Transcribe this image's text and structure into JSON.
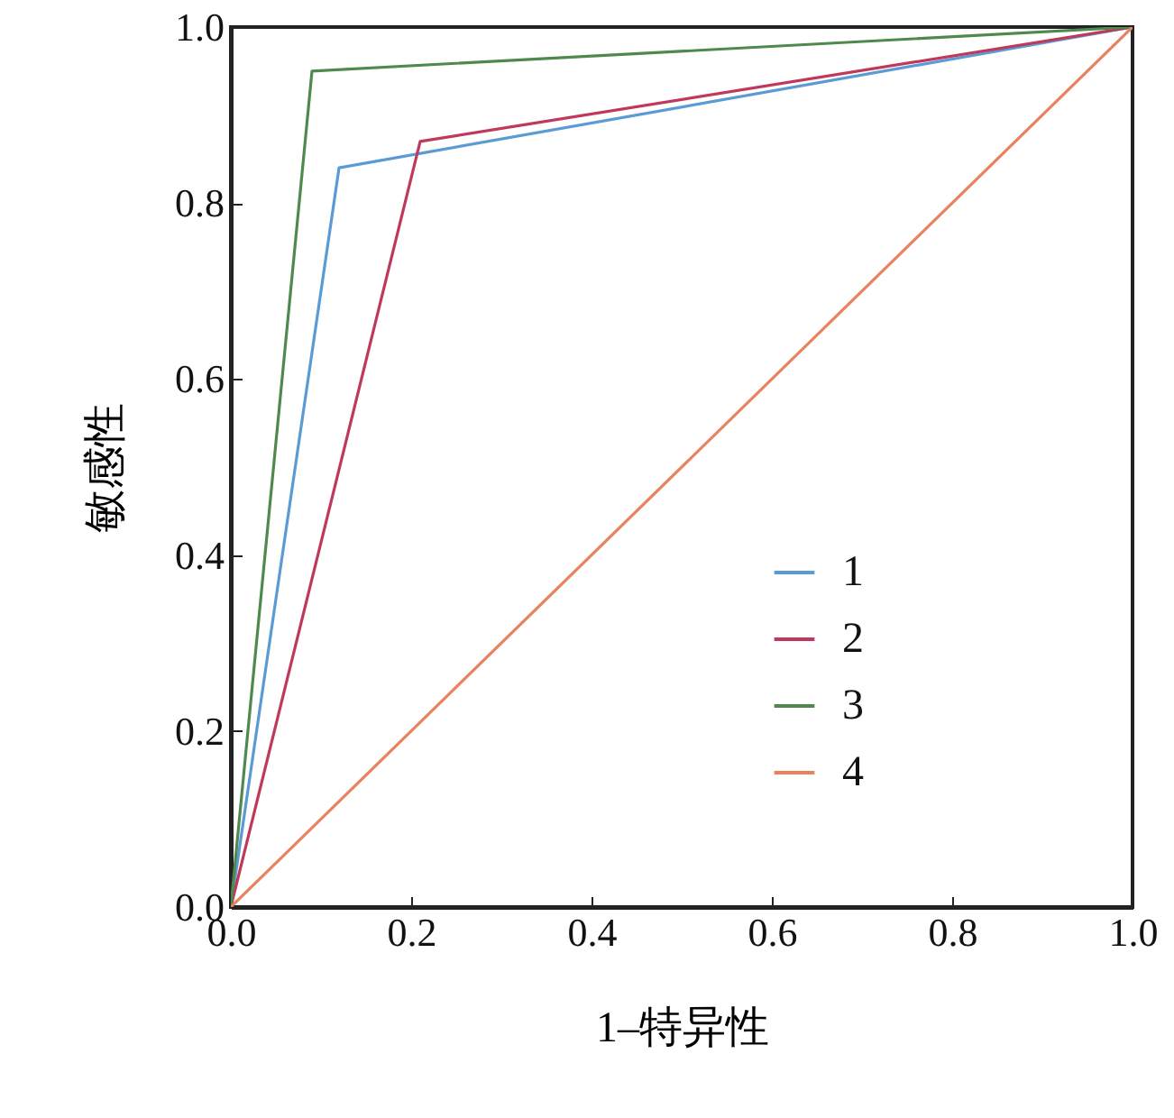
{
  "chart_data": {
    "type": "line",
    "xlabel": "1–特异性",
    "ylabel": "敏感性",
    "xlim": [
      0,
      1
    ],
    "ylim": [
      0,
      1
    ],
    "xticks": [
      {
        "value": 0,
        "label": "0.0"
      },
      {
        "value": 0.2,
        "label": "0.2"
      },
      {
        "value": 0.4,
        "label": "0.4"
      },
      {
        "value": 0.6,
        "label": "0.6"
      },
      {
        "value": 0.8,
        "label": "0.8"
      },
      {
        "value": 1,
        "label": "1.0"
      }
    ],
    "yticks": [
      {
        "value": 0,
        "label": "0.0"
      },
      {
        "value": 0.2,
        "label": "0.2"
      },
      {
        "value": 0.4,
        "label": "0.4"
      },
      {
        "value": 0.6,
        "label": "0.6"
      },
      {
        "value": 0.8,
        "label": "0.8"
      },
      {
        "value": 1,
        "label": "1.0"
      }
    ],
    "grid": false,
    "legend": "right",
    "marker": "none",
    "line_style": "solid",
    "series": [
      {
        "name": "1",
        "color": "#5b9bd5",
        "x": [
          0,
          0.12,
          1
        ],
        "values": [
          0,
          0.84,
          1
        ]
      },
      {
        "name": "2",
        "color": "#c0395a",
        "x": [
          0,
          0.21,
          1
        ],
        "values": [
          0,
          0.87,
          1
        ]
      },
      {
        "name": "3",
        "color": "#4e8a4e",
        "x": [
          0,
          0.09,
          1
        ],
        "values": [
          0,
          0.95,
          1
        ]
      },
      {
        "name": "4",
        "color": "#e8825f",
        "x": [
          0,
          1
        ],
        "values": [
          0,
          1
        ]
      }
    ]
  }
}
